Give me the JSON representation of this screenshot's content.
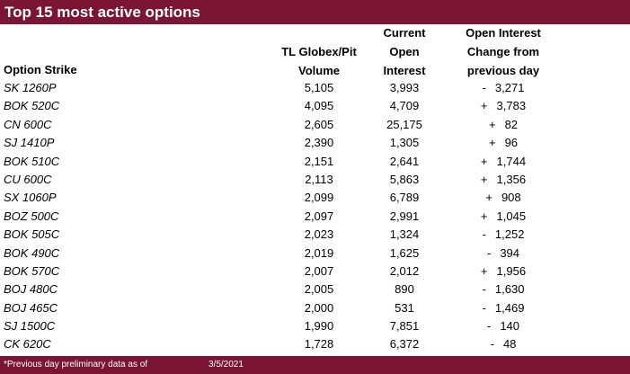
{
  "title": "Top 15 most active options",
  "headers": {
    "strike": "Option Strike",
    "volume": [
      "TL Globex/Pit",
      "Volume"
    ],
    "open_interest": [
      "Current",
      "Open",
      "Interest"
    ],
    "change": [
      "Open Interest",
      "Change from",
      "previous day"
    ]
  },
  "rows": [
    {
      "strike": "SK 1260P",
      "volume": "5,105",
      "oi": "3,993",
      "sign": "-",
      "change": "3,271"
    },
    {
      "strike": "BOK 520C",
      "volume": "4,095",
      "oi": "4,709",
      "sign": "+",
      "change": "3,783"
    },
    {
      "strike": "CN 600C",
      "volume": "2,605",
      "oi": "25,175",
      "sign": "+",
      "change": "82"
    },
    {
      "strike": "SJ 1410P",
      "volume": "2,390",
      "oi": "1,305",
      "sign": "+",
      "change": "96"
    },
    {
      "strike": "BOK 510C",
      "volume": "2,151",
      "oi": "2,641",
      "sign": "+",
      "change": "1,744"
    },
    {
      "strike": "CU 600C",
      "volume": "2,113",
      "oi": "5,863",
      "sign": "+",
      "change": "1,356"
    },
    {
      "strike": "SX 1060P",
      "volume": "2,099",
      "oi": "6,789",
      "sign": "+",
      "change": "908"
    },
    {
      "strike": "BOZ 500C",
      "volume": "2,097",
      "oi": "2,991",
      "sign": "+",
      "change": "1,045"
    },
    {
      "strike": "BOK 505C",
      "volume": "2,023",
      "oi": "1,324",
      "sign": "-",
      "change": "1,252"
    },
    {
      "strike": "BOK 490C",
      "volume": "2,019",
      "oi": "1,625",
      "sign": "-",
      "change": "394"
    },
    {
      "strike": "BOK 570C",
      "volume": "2,007",
      "oi": "2,012",
      "sign": "+",
      "change": "1,956"
    },
    {
      "strike": "BOJ 480C",
      "volume": "2,005",
      "oi": "890",
      "sign": "-",
      "change": "1,630"
    },
    {
      "strike": "BOJ 465C",
      "volume": "2,000",
      "oi": "531",
      "sign": "-",
      "change": "1,469"
    },
    {
      "strike": "SJ 1500C",
      "volume": "1,990",
      "oi": "7,851",
      "sign": "-",
      "change": "140"
    },
    {
      "strike": "CK 620C",
      "volume": "1,728",
      "oi": "6,372",
      "sign": "-",
      "change": "48"
    }
  ],
  "footer": {
    "note": "*Previous day preliminary data as of",
    "date": "3/5/2021"
  },
  "colors": {
    "accent": "#7b1535",
    "header_text": "#ffffff"
  }
}
